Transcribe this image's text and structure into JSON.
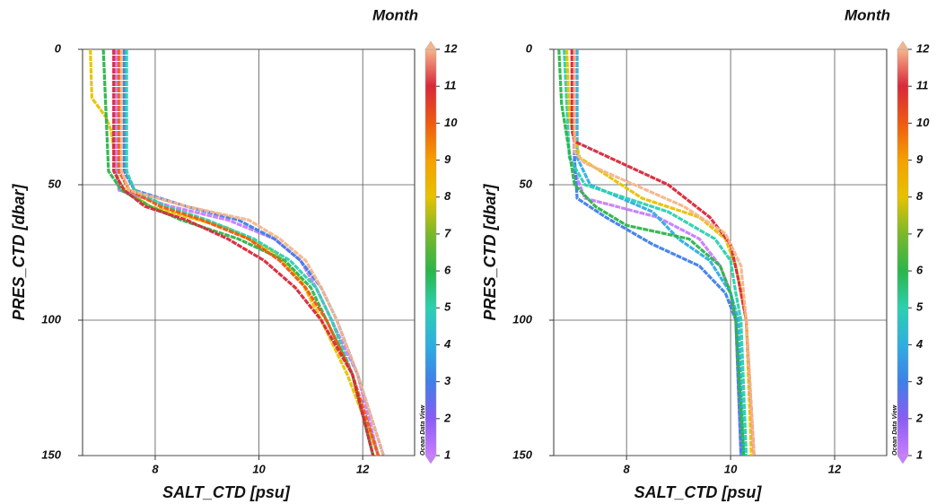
{
  "chart_data": [
    {
      "type": "line",
      "xlabel": "SALT_CTD [psu]",
      "ylabel": "PRES_CTD [dbar]",
      "xlim": [
        6.6,
        13
      ],
      "xticks": [
        8,
        10,
        12
      ],
      "ylim": [
        0,
        150
      ],
      "yticks": [
        0,
        50,
        100,
        150
      ],
      "y_inverted": true,
      "grid": true,
      "colorbar": {
        "title": "Month",
        "credit": "Ocean Data View",
        "lim": [
          1,
          12
        ],
        "ticks": [
          1,
          2,
          3,
          4,
          5,
          6,
          7,
          8,
          9,
          10,
          11,
          12
        ],
        "colors": [
          "#c77dff",
          "#8a5cf2",
          "#3f7fe8",
          "#2eaee0",
          "#2bd0b0",
          "#2bb54a",
          "#7ab82a",
          "#e6c200",
          "#f5a000",
          "#ef5a10",
          "#d8283a",
          "#f7b48a"
        ]
      },
      "series": [
        {
          "color": "#e6c200",
          "x": [
            6.75,
            6.78,
            7.05,
            7.15,
            7.3,
            7.9,
            9.4,
            10.3,
            10.8,
            11.2,
            11.7,
            12.3
          ],
          "values": [
            0,
            18,
            25,
            30,
            50,
            58,
            66,
            75,
            85,
            100,
            120,
            150
          ]
        },
        {
          "color": "#c77dff",
          "x": [
            7.25,
            7.25,
            7.3,
            8.3,
            9.4,
            10.3,
            10.8,
            11.1,
            11.4,
            11.9,
            12.3
          ],
          "values": [
            0,
            45,
            52,
            58,
            63,
            70,
            78,
            88,
            100,
            120,
            150
          ]
        },
        {
          "color": "#3f7fe8",
          "x": [
            7.4,
            7.4,
            7.6,
            8.6,
            9.6,
            10.3,
            10.8,
            11.2,
            11.5,
            11.9,
            12.4
          ],
          "values": [
            0,
            45,
            52,
            58,
            63,
            70,
            78,
            88,
            100,
            120,
            150
          ]
        },
        {
          "color": "#2bd0b0",
          "x": [
            7.45,
            7.45,
            7.6,
            8.2,
            9.0,
            9.9,
            10.6,
            11.1,
            11.4,
            11.8,
            12.2
          ],
          "values": [
            0,
            45,
            52,
            58,
            63,
            70,
            78,
            88,
            100,
            120,
            150
          ]
        },
        {
          "color": "#2bb54a",
          "x": [
            7.0,
            7.1,
            7.35,
            7.9,
            8.5,
            9.6,
            10.5,
            11.0,
            11.3,
            11.8,
            12.2
          ],
          "values": [
            0,
            45,
            52,
            58,
            63,
            70,
            78,
            88,
            100,
            120,
            150
          ]
        },
        {
          "color": "#ef5a10",
          "x": [
            7.3,
            7.3,
            7.5,
            8.1,
            8.9,
            9.8,
            10.4,
            10.9,
            11.3,
            11.8,
            12.3
          ],
          "values": [
            0,
            45,
            52,
            58,
            63,
            70,
            78,
            88,
            100,
            120,
            150
          ]
        },
        {
          "color": "#d8283a",
          "x": [
            7.2,
            7.2,
            7.4,
            7.8,
            8.6,
            9.4,
            10.1,
            10.7,
            11.2,
            11.8,
            12.2
          ],
          "values": [
            0,
            45,
            52,
            58,
            63,
            70,
            78,
            88,
            100,
            120,
            150
          ]
        },
        {
          "color": "#f7b48a",
          "x": [
            7.35,
            7.35,
            7.5,
            8.6,
            9.8,
            10.4,
            10.9,
            11.2,
            11.5,
            11.9,
            12.4
          ],
          "values": [
            0,
            45,
            52,
            58,
            63,
            70,
            78,
            88,
            100,
            120,
            150
          ]
        }
      ]
    },
    {
      "type": "line",
      "xlabel": "SALT_CTD [psu]",
      "ylabel": "PRES_CTD [dbar]",
      "xlim": [
        6.6,
        13
      ],
      "xticks": [
        8,
        10,
        12
      ],
      "ylim": [
        0,
        150
      ],
      "yticks": [
        0,
        50,
        100,
        150
      ],
      "y_inverted": true,
      "grid": true,
      "colorbar": {
        "title": "Month",
        "credit": "Ocean Data View",
        "lim": [
          1,
          12
        ],
        "ticks": [
          1,
          2,
          3,
          4,
          5,
          6,
          7,
          8,
          9,
          10,
          11,
          12
        ],
        "colors": [
          "#c77dff",
          "#8a5cf2",
          "#3f7fe8",
          "#2eaee0",
          "#2bd0b0",
          "#2bb54a",
          "#7ab82a",
          "#e6c200",
          "#f5a000",
          "#ef5a10",
          "#d8283a",
          "#f7b48a"
        ]
      },
      "series": [
        {
          "color": "#c77dff",
          "x": [
            6.95,
            7.0,
            7.2,
            8.6,
            9.4,
            9.8,
            10.0,
            10.1,
            10.2
          ],
          "values": [
            0,
            45,
            55,
            62,
            70,
            80,
            90,
            100,
            150
          ]
        },
        {
          "color": "#3f7fe8",
          "x": [
            7.0,
            7.0,
            7.05,
            7.6,
            8.5,
            9.4,
            9.9,
            10.1,
            10.2
          ],
          "values": [
            0,
            40,
            55,
            62,
            72,
            80,
            90,
            100,
            150
          ]
        },
        {
          "color": "#2eaee0",
          "x": [
            7.05,
            7.05,
            7.3,
            8.5,
            9.0,
            9.6,
            10.0,
            10.15,
            10.25
          ],
          "values": [
            0,
            40,
            50,
            60,
            70,
            78,
            90,
            100,
            150
          ]
        },
        {
          "color": "#2bd0b0",
          "x": [
            6.8,
            6.9,
            7.2,
            8.8,
            9.7,
            10.0,
            10.1,
            10.2,
            10.3
          ],
          "values": [
            0,
            40,
            50,
            60,
            70,
            78,
            90,
            100,
            150
          ]
        },
        {
          "color": "#2bb54a",
          "x": [
            6.7,
            6.75,
            7.0,
            7.4,
            8.0,
            9.2,
            9.8,
            10.0,
            10.1,
            10.25
          ],
          "values": [
            0,
            20,
            50,
            58,
            65,
            70,
            80,
            90,
            100,
            150
          ]
        },
        {
          "color": "#e6c200",
          "x": [
            6.85,
            6.9,
            7.1,
            8.3,
            9.4,
            9.9,
            10.1,
            10.3,
            10.4
          ],
          "values": [
            0,
            25,
            40,
            55,
            62,
            70,
            80,
            100,
            150
          ]
        },
        {
          "color": "#d8283a",
          "x": [
            6.95,
            6.95,
            7.0,
            8.8,
            9.6,
            10.0,
            10.15,
            10.3,
            10.45
          ],
          "values": [
            0,
            30,
            34,
            50,
            62,
            72,
            85,
            100,
            150
          ]
        },
        {
          "color": "#f7b48a",
          "x": [
            7.0,
            7.0,
            7.2,
            9.1,
            9.9,
            10.2,
            10.3,
            10.45
          ],
          "values": [
            0,
            38,
            42,
            58,
            68,
            80,
            100,
            150
          ]
        }
      ]
    }
  ]
}
